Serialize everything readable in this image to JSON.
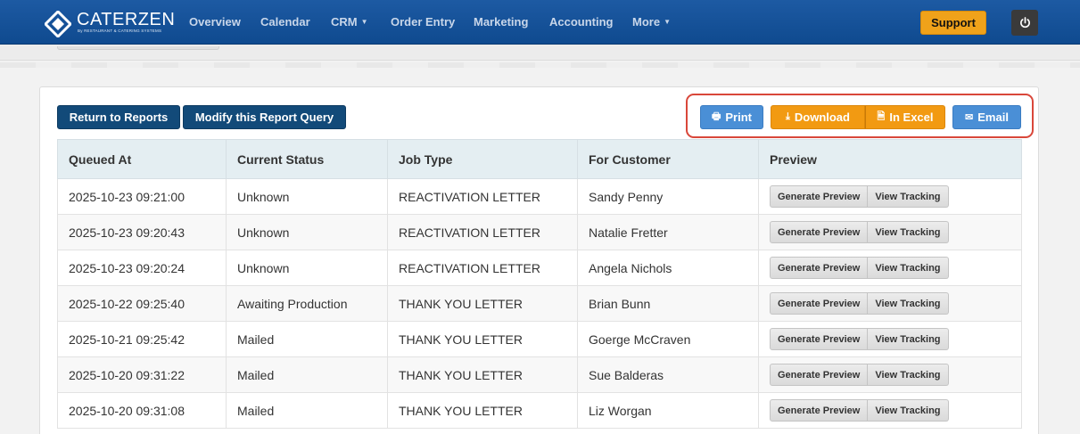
{
  "brand": {
    "name": "CATERZEN",
    "tagline": "By RESTAURANT & CATERING SYSTEMS"
  },
  "nav": {
    "items": [
      {
        "label": "Overview",
        "has_caret": false
      },
      {
        "label": "Calendar",
        "has_caret": false
      },
      {
        "label": "CRM",
        "has_caret": true
      },
      {
        "label": "Order Entry",
        "has_caret": false
      },
      {
        "label": "Marketing",
        "has_caret": false
      },
      {
        "label": "Accounting",
        "has_caret": false
      },
      {
        "label": "More",
        "has_caret": true
      }
    ],
    "support_label": "Support",
    "power_icon": "power-icon"
  },
  "toolbar": {
    "return_label": "Return to Reports",
    "modify_label": "Modify this Report Query",
    "print_label": "Print",
    "download_label": "Download",
    "excel_label": "In Excel",
    "email_label": "Email"
  },
  "table": {
    "headers": [
      "Queued At",
      "Current Status",
      "Job Type",
      "For Customer",
      "Preview"
    ],
    "rows": [
      [
        "2025-10-23 09:21:00",
        "Unknown",
        "REACTIVATION LETTER",
        "Sandy Penny"
      ],
      [
        "2025-10-23 09:20:43",
        "Unknown",
        "REACTIVATION LETTER",
        "Natalie Fretter"
      ],
      [
        "2025-10-23 09:20:24",
        "Unknown",
        "REACTIVATION LETTER",
        "Angela Nichols"
      ],
      [
        "2025-10-22 09:25:40",
        "Awaiting Production",
        "THANK YOU LETTER",
        "Brian Bunn"
      ],
      [
        "2025-10-21 09:25:42",
        "Mailed",
        "THANK YOU LETTER",
        "Goerge McCraven"
      ],
      [
        "2025-10-20 09:31:22",
        "Mailed",
        "THANK YOU LETTER",
        "Sue Balderas"
      ],
      [
        "2025-10-20 09:31:08",
        "Mailed",
        "THANK YOU LETTER",
        "Liz Worgan"
      ]
    ],
    "preview_label": "Generate Preview",
    "tracking_label": "View Tracking"
  },
  "colors": {
    "nav_bg": "#1d5aa3",
    "support": "#f0a21a",
    "dark_button": "#124a79",
    "action_blue": "#4a8fd6",
    "action_orange": "#f29a12",
    "highlight": "#d9473a"
  }
}
